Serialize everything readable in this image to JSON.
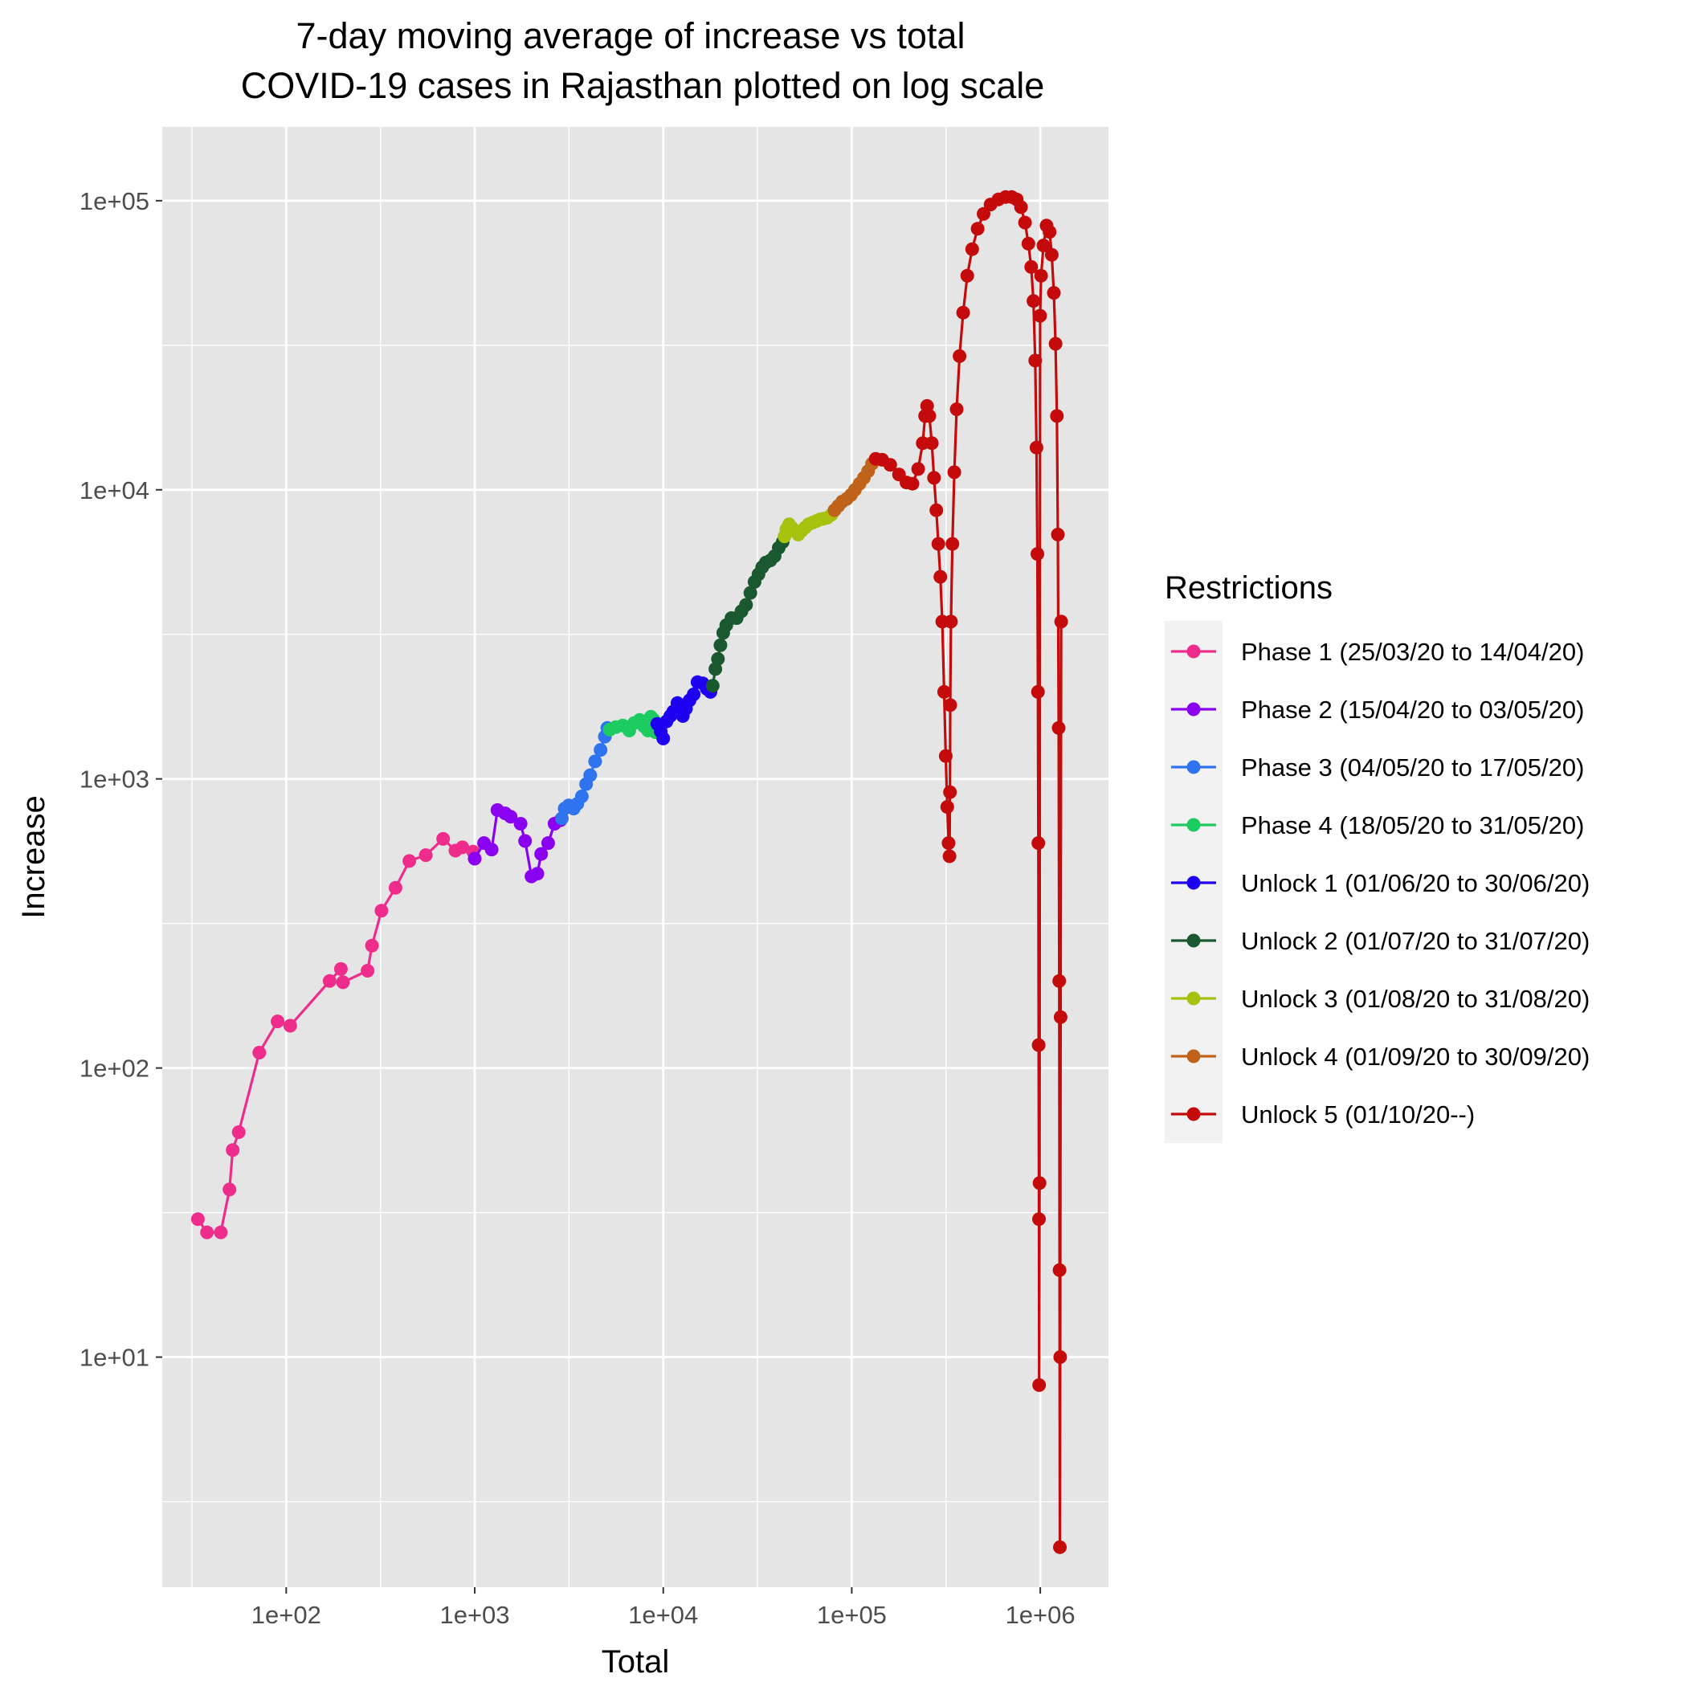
{
  "chart_data": {
    "type": "line",
    "title_lines": [
      "7-day moving average of increase vs total",
      "COVID-19 cases in Rajasthan plotted on log scale"
    ],
    "xlabel": "Total",
    "ylabel": "Increase",
    "x_scale": "log10",
    "y_scale": "log10",
    "xlim": [
      22,
      2300000
    ],
    "ylim": [
      1.6,
      180000
    ],
    "x_ticks": [
      {
        "value": 100,
        "label": "1e+02"
      },
      {
        "value": 1000,
        "label": "1e+03"
      },
      {
        "value": 10000,
        "label": "1e+04"
      },
      {
        "value": 100000,
        "label": "1e+05"
      },
      {
        "value": 1000000,
        "label": "1e+06"
      }
    ],
    "y_ticks": [
      {
        "value": 10,
        "label": "1e+01"
      },
      {
        "value": 100,
        "label": "1e+02"
      },
      {
        "value": 1000,
        "label": "1e+03"
      },
      {
        "value": 10000,
        "label": "1e+04"
      },
      {
        "value": 100000,
        "label": "1e+05"
      }
    ],
    "grid": true,
    "legend": {
      "title": "Restrictions",
      "position": "right"
    },
    "series": [
      {
        "name": "Phase 1 (25/03/20 to 14/04/20)",
        "color": "#ee2c8c",
        "points": [
          [
            34,
            30
          ],
          [
            38,
            27
          ],
          [
            45,
            27
          ],
          [
            50,
            38
          ],
          [
            52,
            52
          ],
          [
            56,
            60
          ],
          [
            72,
            113
          ],
          [
            90,
            145
          ],
          [
            105,
            140
          ],
          [
            170,
            200
          ],
          [
            195,
            220
          ],
          [
            200,
            198
          ],
          [
            270,
            217
          ],
          [
            285,
            265
          ],
          [
            320,
            350
          ],
          [
            380,
            420
          ],
          [
            450,
            520
          ],
          [
            550,
            545
          ],
          [
            680,
            620
          ],
          [
            790,
            565
          ],
          [
            860,
            580
          ],
          [
            980,
            560
          ]
        ]
      },
      {
        "name": "Phase 2 (15/04/20 to 03/05/20)",
        "color": "#8a00f0",
        "points": [
          [
            1000,
            530
          ],
          [
            1120,
            600
          ],
          [
            1230,
            570
          ],
          [
            1320,
            780
          ],
          [
            1450,
            760
          ],
          [
            1550,
            740
          ],
          [
            1750,
            700
          ],
          [
            1850,
            610
          ],
          [
            2000,
            460
          ],
          [
            2150,
            470
          ],
          [
            2250,
            550
          ],
          [
            2450,
            600
          ],
          [
            2650,
            700
          ],
          [
            2850,
            720
          ]
        ]
      },
      {
        "name": "Phase 3 (04/05/20 to 17/05/20)",
        "color": "#2f74ee",
        "points": [
          [
            2900,
            730
          ],
          [
            3000,
            790
          ],
          [
            3150,
            810
          ],
          [
            3350,
            790
          ],
          [
            3500,
            820
          ],
          [
            3700,
            870
          ],
          [
            3900,
            960
          ],
          [
            4100,
            1030
          ],
          [
            4350,
            1150
          ],
          [
            4650,
            1260
          ],
          [
            4900,
            1400
          ],
          [
            5050,
            1500
          ]
        ]
      },
      {
        "name": "Phase 4 (18/05/20 to 31/05/20)",
        "color": "#1dcc60",
        "points": [
          [
            5200,
            1480
          ],
          [
            5600,
            1510
          ],
          [
            6100,
            1530
          ],
          [
            6600,
            1470
          ],
          [
            7000,
            1560
          ],
          [
            7500,
            1600
          ],
          [
            7900,
            1520
          ],
          [
            8300,
            1470
          ],
          [
            8600,
            1640
          ],
          [
            8900,
            1600
          ],
          [
            9100,
            1450
          ]
        ]
      },
      {
        "name": "Unlock 1 (01/06/20 to 30/06/20)",
        "color": "#1e00f0",
        "points": [
          [
            9300,
            1550
          ],
          [
            9700,
            1460
          ],
          [
            10000,
            1380
          ],
          [
            10400,
            1580
          ],
          [
            10900,
            1650
          ],
          [
            11300,
            1710
          ],
          [
            11900,
            1830
          ],
          [
            12300,
            1760
          ],
          [
            12700,
            1650
          ],
          [
            13200,
            1750
          ],
          [
            13800,
            1870
          ],
          [
            14500,
            1960
          ],
          [
            15200,
            2160
          ],
          [
            16200,
            2140
          ],
          [
            17000,
            2050
          ],
          [
            17800,
            2000
          ]
        ]
      },
      {
        "name": "Unlock 2 (01/07/20 to 31/07/20)",
        "color": "#1a5830",
        "points": [
          [
            18300,
            2100
          ],
          [
            18900,
            2400
          ],
          [
            19500,
            2600
          ],
          [
            20100,
            2900
          ],
          [
            20800,
            3200
          ],
          [
            21600,
            3400
          ],
          [
            23000,
            3600
          ],
          [
            24500,
            3600
          ],
          [
            26000,
            3800
          ],
          [
            27500,
            4000
          ],
          [
            29000,
            4400
          ],
          [
            30500,
            4800
          ],
          [
            32000,
            5100
          ],
          [
            33500,
            5400
          ],
          [
            35000,
            5600
          ],
          [
            37000,
            5700
          ],
          [
            39000,
            5900
          ],
          [
            41000,
            6300
          ],
          [
            43000,
            6600
          ]
        ]
      },
      {
        "name": "Unlock 3 (01/08/20 to 31/08/20)",
        "color": "#a8c10e",
        "points": [
          [
            44000,
            6900
          ],
          [
            45000,
            7300
          ],
          [
            46500,
            7600
          ],
          [
            48000,
            7400
          ],
          [
            50000,
            7200
          ],
          [
            52000,
            7000
          ],
          [
            54000,
            7200
          ],
          [
            56500,
            7400
          ],
          [
            59000,
            7600
          ],
          [
            62000,
            7700
          ],
          [
            65000,
            7800
          ],
          [
            68000,
            7900
          ],
          [
            71000,
            7950
          ],
          [
            74000,
            8000
          ],
          [
            78000,
            8200
          ]
        ]
      },
      {
        "name": "Unlock 4 (01/09/20 to 30/09/20)",
        "color": "#c0631a",
        "points": [
          [
            81000,
            8500
          ],
          [
            85000,
            8800
          ],
          [
            89000,
            9100
          ],
          [
            94000,
            9300
          ],
          [
            99000,
            9600
          ],
          [
            104000,
            10000
          ],
          [
            110000,
            10500
          ],
          [
            116000,
            11000
          ],
          [
            122000,
            11600
          ],
          [
            128000,
            12300
          ]
        ]
      },
      {
        "name": "Unlock 5 (01/10/20--)",
        "color": "#c40a0a",
        "points": [
          [
            134000,
            12800
          ],
          [
            145000,
            12700
          ],
          [
            160000,
            12200
          ],
          [
            178000,
            11300
          ],
          [
            195000,
            10600
          ],
          [
            210000,
            10500
          ],
          [
            225000,
            11800
          ],
          [
            238000,
            14500
          ],
          [
            245000,
            18000
          ],
          [
            251000,
            19500
          ],
          [
            258000,
            18000
          ],
          [
            266000,
            14500
          ],
          [
            273000,
            11000
          ],
          [
            281000,
            8500
          ],
          [
            288000,
            6500
          ],
          [
            295000,
            5000
          ],
          [
            302000,
            3500
          ],
          [
            309000,
            2000
          ],
          [
            315000,
            1200
          ],
          [
            321000,
            800
          ],
          [
            326000,
            600
          ],
          [
            330000,
            540
          ],
          [
            332000,
            900
          ],
          [
            333000,
            1800
          ],
          [
            336000,
            3500
          ],
          [
            342000,
            6500
          ],
          [
            350000,
            11500
          ],
          [
            360000,
            19000
          ],
          [
            373000,
            29000
          ],
          [
            390000,
            41000
          ],
          [
            410000,
            55000
          ],
          [
            435000,
            68000
          ],
          [
            465000,
            80000
          ],
          [
            500000,
            90000
          ],
          [
            545000,
            97000
          ],
          [
            600000,
            101000
          ],
          [
            655000,
            103000
          ],
          [
            705000,
            103000
          ],
          [
            750000,
            101000
          ],
          [
            790000,
            95000
          ],
          [
            830000,
            84000
          ],
          [
            865000,
            71000
          ],
          [
            895000,
            59000
          ],
          [
            920000,
            45000
          ],
          [
            940000,
            28000
          ],
          [
            955000,
            14000
          ],
          [
            965000,
            6000
          ],
          [
            972000,
            2000
          ],
          [
            977000,
            600
          ],
          [
            981000,
            120
          ],
          [
            984000,
            30
          ],
          [
            986000,
            8
          ],
          [
            991000,
            40
          ],
          [
            998000,
            40000
          ],
          [
            1010000,
            55000
          ],
          [
            1040000,
            70000
          ],
          [
            1080000,
            82000
          ],
          [
            1120000,
            78000
          ],
          [
            1150000,
            65000
          ],
          [
            1180000,
            48000
          ],
          [
            1205000,
            32000
          ],
          [
            1225000,
            18000
          ],
          [
            1240000,
            7000
          ],
          [
            1252000,
            1500
          ],
          [
            1260000,
            200
          ],
          [
            1266000,
            20
          ],
          [
            1270000,
            2.2
          ],
          [
            1275000,
            10
          ],
          [
            1282000,
            150
          ],
          [
            1290000,
            3500
          ]
        ]
      }
    ]
  }
}
